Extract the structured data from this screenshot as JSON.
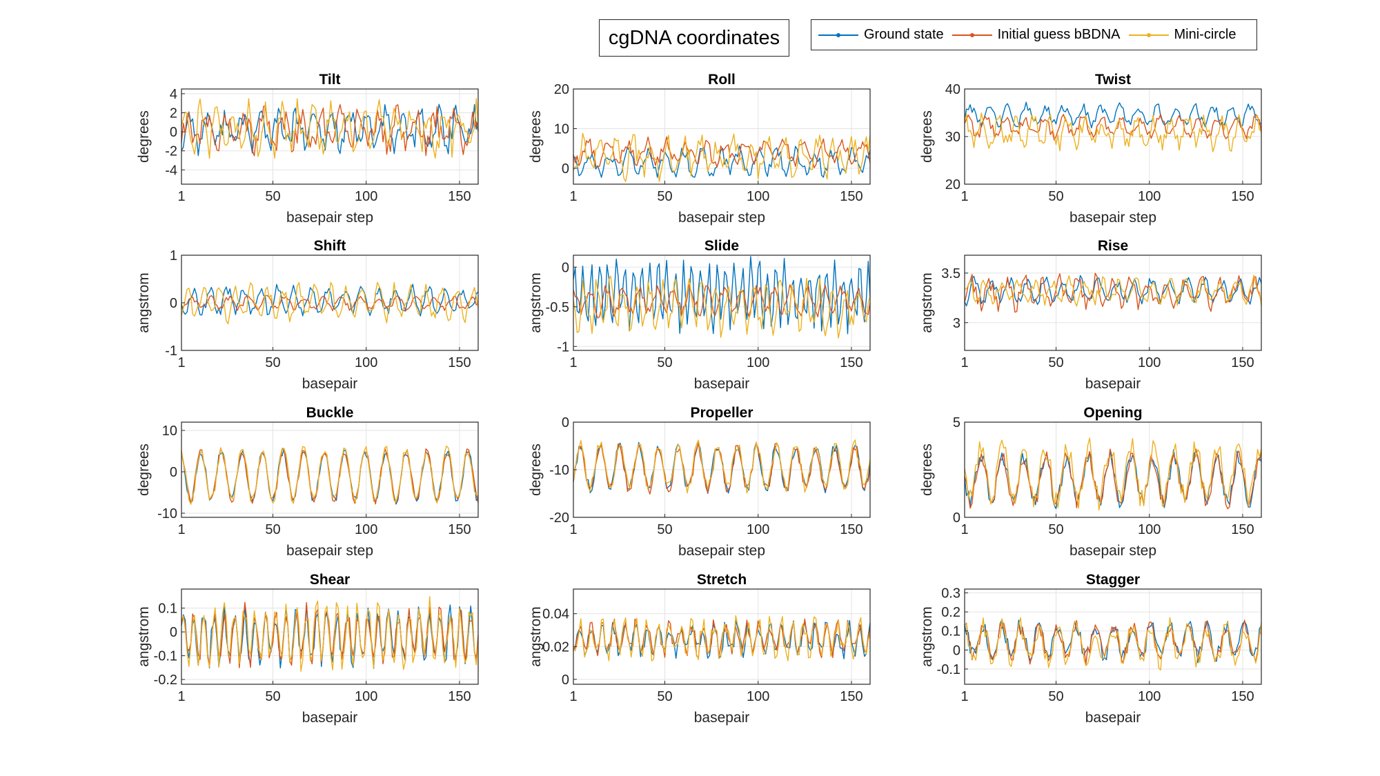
{
  "figure": {
    "title": "cgDNA coordinates",
    "legend": [
      {
        "name": "Ground state",
        "color": "#0072BD"
      },
      {
        "name": "Initial guess bBDNA",
        "color": "#D95319"
      },
      {
        "name": "Mini-circle",
        "color": "#EDB120"
      }
    ]
  },
  "chart_data": [
    {
      "type": "line",
      "title": "Tilt",
      "xlabel": "basepair step",
      "ylabel": "degrees",
      "xlim": [
        1,
        160
      ],
      "ylim": [
        -5.5,
        4.5
      ],
      "xticks": [
        1,
        50,
        100,
        150
      ],
      "yticks": [
        -4,
        -2,
        0,
        2,
        4
      ],
      "grid": true,
      "n": 160,
      "series": [
        {
          "name": "Ground state",
          "center": 0.2,
          "amp": 1.6,
          "period": 9.5,
          "noise": 1.2,
          "seed": 11
        },
        {
          "name": "Initial guess bBDNA",
          "center": 0.1,
          "amp": 1.5,
          "period": 10.2,
          "noise": 1.3,
          "seed": 12
        },
        {
          "name": "Mini-circle",
          "center": 0.3,
          "amp": 1.8,
          "period": 8.7,
          "noise": 1.5,
          "seed": 13
        }
      ]
    },
    {
      "type": "line",
      "title": "Roll",
      "xlabel": "basepair step",
      "ylabel": "degrees",
      "xlim": [
        1,
        160
      ],
      "ylim": [
        -4,
        20
      ],
      "xticks": [
        1,
        50,
        100,
        150
      ],
      "yticks": [
        0,
        10,
        20
      ],
      "grid": true,
      "n": 160,
      "series": [
        {
          "name": "Ground state",
          "center": 1.5,
          "amp": 2.5,
          "period": 10.0,
          "noise": 1.8,
          "seed": 21
        },
        {
          "name": "Initial guess bBDNA",
          "center": 4.0,
          "amp": 2.5,
          "period": 10.5,
          "noise": 1.6,
          "seed": 22
        },
        {
          "name": "Mini-circle",
          "center": 3.0,
          "amp": 3.5,
          "period": 9.0,
          "noise": 3.0,
          "seed": 23
        }
      ]
    },
    {
      "type": "line",
      "title": "Twist",
      "xlabel": "basepair step",
      "ylabel": "degrees",
      "xlim": [
        1,
        160
      ],
      "ylim": [
        20,
        40
      ],
      "xticks": [
        1,
        50,
        100,
        150
      ],
      "yticks": [
        20,
        30,
        40
      ],
      "grid": true,
      "n": 160,
      "series": [
        {
          "name": "Ground state",
          "center": 34.5,
          "amp": 1.8,
          "period": 10.0,
          "noise": 1.0,
          "seed": 31
        },
        {
          "name": "Initial guess bBDNA",
          "center": 32.0,
          "amp": 1.8,
          "period": 10.3,
          "noise": 1.0,
          "seed": 32
        },
        {
          "name": "Mini-circle",
          "center": 31.0,
          "amp": 2.5,
          "period": 9.2,
          "noise": 1.8,
          "seed": 33
        }
      ]
    },
    {
      "type": "line",
      "title": "Shift",
      "xlabel": "basepair",
      "ylabel": "angstrom",
      "xlim": [
        1,
        160
      ],
      "ylim": [
        -1,
        1
      ],
      "xticks": [
        1,
        50,
        100,
        150
      ],
      "yticks": [
        -1,
        0,
        1
      ],
      "grid": true,
      "n": 160,
      "series": [
        {
          "name": "Ground state",
          "center": 0.05,
          "amp": 0.25,
          "period": 9.0,
          "noise": 0.12,
          "seed": 41
        },
        {
          "name": "Initial guess bBDNA",
          "center": 0.0,
          "amp": 0.12,
          "period": 10.0,
          "noise": 0.06,
          "seed": 42
        },
        {
          "name": "Mini-circle",
          "center": 0.0,
          "amp": 0.3,
          "period": 8.5,
          "noise": 0.15,
          "seed": 43
        }
      ]
    },
    {
      "type": "line",
      "title": "Slide",
      "xlabel": "basepair",
      "ylabel": "angstrom",
      "xlim": [
        1,
        160
      ],
      "ylim": [
        -1.05,
        0.15
      ],
      "xticks": [
        1,
        50,
        100,
        150
      ],
      "yticks": [
        -1,
        -0.5,
        0
      ],
      "grid": true,
      "n": 160,
      "series": [
        {
          "name": "Ground state",
          "center": -0.35,
          "amp": 0.35,
          "period": 4.5,
          "noise": 0.15,
          "seed": 51
        },
        {
          "name": "Initial guess bBDNA",
          "center": -0.42,
          "amp": 0.15,
          "period": 9.0,
          "noise": 0.08,
          "seed": 52
        },
        {
          "name": "Mini-circle",
          "center": -0.5,
          "amp": 0.25,
          "period": 7.0,
          "noise": 0.15,
          "seed": 53
        }
      ]
    },
    {
      "type": "line",
      "title": "Rise",
      "xlabel": "basepair",
      "ylabel": "angstrom",
      "xlim": [
        1,
        160
      ],
      "ylim": [
        2.72,
        3.68
      ],
      "xticks": [
        1,
        50,
        100,
        150
      ],
      "yticks": [
        3,
        3.5
      ],
      "grid": true,
      "n": 160,
      "series": [
        {
          "name": "Ground state",
          "center": 3.32,
          "amp": 0.1,
          "period": 9.5,
          "noise": 0.06,
          "seed": 61
        },
        {
          "name": "Initial guess bBDNA",
          "center": 3.3,
          "amp": 0.12,
          "period": 9.5,
          "noise": 0.08,
          "seed": 62
        },
        {
          "name": "Mini-circle",
          "center": 3.32,
          "amp": 0.1,
          "period": 9.0,
          "noise": 0.06,
          "seed": 63
        }
      ]
    },
    {
      "type": "line",
      "title": "Buckle",
      "xlabel": "basepair step",
      "ylabel": "degrees",
      "xlim": [
        1,
        160
      ],
      "ylim": [
        -11,
        12
      ],
      "xticks": [
        1,
        50,
        100,
        150
      ],
      "yticks": [
        -10,
        0,
        10
      ],
      "grid": true,
      "n": 160,
      "series": [
        {
          "name": "Ground state",
          "center": -1.0,
          "amp": 6.0,
          "period": 11.0,
          "noise": 1.0,
          "seed": 71
        },
        {
          "name": "Initial guess bBDNA",
          "center": -1.0,
          "amp": 6.0,
          "period": 11.0,
          "noise": 1.0,
          "seed": 71
        },
        {
          "name": "Mini-circle",
          "center": -0.8,
          "amp": 6.2,
          "period": 11.0,
          "noise": 1.2,
          "seed": 71
        }
      ]
    },
    {
      "type": "line",
      "title": "Propeller",
      "xlabel": "basepair step",
      "ylabel": "degrees",
      "xlim": [
        1,
        160
      ],
      "ylim": [
        -20,
        0
      ],
      "xticks": [
        1,
        50,
        100,
        150
      ],
      "yticks": [
        -20,
        -10,
        0
      ],
      "grid": true,
      "n": 160,
      "series": [
        {
          "name": "Ground state",
          "center": -9.5,
          "amp": 4.5,
          "period": 10.5,
          "noise": 1.2,
          "seed": 81
        },
        {
          "name": "Initial guess bBDNA",
          "center": -9.7,
          "amp": 4.5,
          "period": 10.5,
          "noise": 1.2,
          "seed": 81
        },
        {
          "name": "Mini-circle",
          "center": -9.3,
          "amp": 4.5,
          "period": 10.5,
          "noise": 1.3,
          "seed": 81
        }
      ]
    },
    {
      "type": "line",
      "title": "Opening",
      "xlabel": "basepair step",
      "ylabel": "degrees",
      "xlim": [
        1,
        160
      ],
      "ylim": [
        0,
        5
      ],
      "xticks": [
        1,
        50,
        100,
        150
      ],
      "yticks": [
        0,
        5
      ],
      "grid": true,
      "n": 160,
      "series": [
        {
          "name": "Ground state",
          "center": 2.0,
          "amp": 1.2,
          "period": 11.5,
          "noise": 0.4,
          "seed": 91
        },
        {
          "name": "Initial guess bBDNA",
          "center": 2.0,
          "amp": 1.2,
          "period": 11.5,
          "noise": 0.4,
          "seed": 91
        },
        {
          "name": "Mini-circle",
          "center": 2.3,
          "amp": 1.4,
          "period": 11.5,
          "noise": 0.6,
          "seed": 91
        }
      ]
    },
    {
      "type": "line",
      "title": "Shear",
      "xlabel": "basepair",
      "ylabel": "angstrom",
      "xlim": [
        1,
        160
      ],
      "ylim": [
        -0.22,
        0.18
      ],
      "xticks": [
        1,
        50,
        100,
        150
      ],
      "yticks": [
        -0.2,
        -0.1,
        0,
        0.1
      ],
      "grid": true,
      "n": 160,
      "series": [
        {
          "name": "Ground state",
          "center": -0.02,
          "amp": 0.1,
          "period": 5.5,
          "noise": 0.04,
          "seed": 101
        },
        {
          "name": "Initial guess bBDNA",
          "center": -0.015,
          "amp": 0.1,
          "period": 5.5,
          "noise": 0.04,
          "seed": 101
        },
        {
          "name": "Mini-circle",
          "center": -0.01,
          "amp": 0.11,
          "period": 5.5,
          "noise": 0.05,
          "seed": 101
        }
      ]
    },
    {
      "type": "line",
      "title": "Stretch",
      "xlabel": "basepair",
      "ylabel": "angstrom",
      "xlim": [
        1,
        160
      ],
      "ylim": [
        -0.003,
        0.055
      ],
      "xticks": [
        1,
        50,
        100,
        150
      ],
      "yticks": [
        0,
        0.02,
        0.04
      ],
      "grid": true,
      "n": 160,
      "series": [
        {
          "name": "Ground state",
          "center": 0.024,
          "amp": 0.008,
          "period": 6.0,
          "noise": 0.005,
          "seed": 111
        },
        {
          "name": "Initial guess bBDNA",
          "center": 0.025,
          "amp": 0.008,
          "period": 6.0,
          "noise": 0.005,
          "seed": 111
        },
        {
          "name": "Mini-circle",
          "center": 0.025,
          "amp": 0.009,
          "period": 6.0,
          "noise": 0.006,
          "seed": 111
        }
      ]
    },
    {
      "type": "line",
      "title": "Stagger",
      "xlabel": "basepair",
      "ylabel": "angstrom",
      "xlim": [
        1,
        160
      ],
      "ylim": [
        -0.18,
        0.32
      ],
      "xticks": [
        1,
        50,
        100,
        150
      ],
      "yticks": [
        -0.1,
        0,
        0.1,
        0.2,
        0.3
      ],
      "grid": true,
      "n": 160,
      "series": [
        {
          "name": "Ground state",
          "center": 0.05,
          "amp": 0.08,
          "period": 10.0,
          "noise": 0.04,
          "seed": 121
        },
        {
          "name": "Initial guess bBDNA",
          "center": 0.04,
          "amp": 0.08,
          "period": 10.0,
          "noise": 0.04,
          "seed": 121
        },
        {
          "name": "Mini-circle",
          "center": 0.03,
          "amp": 0.09,
          "period": 10.0,
          "noise": 0.05,
          "seed": 121
        }
      ]
    }
  ]
}
